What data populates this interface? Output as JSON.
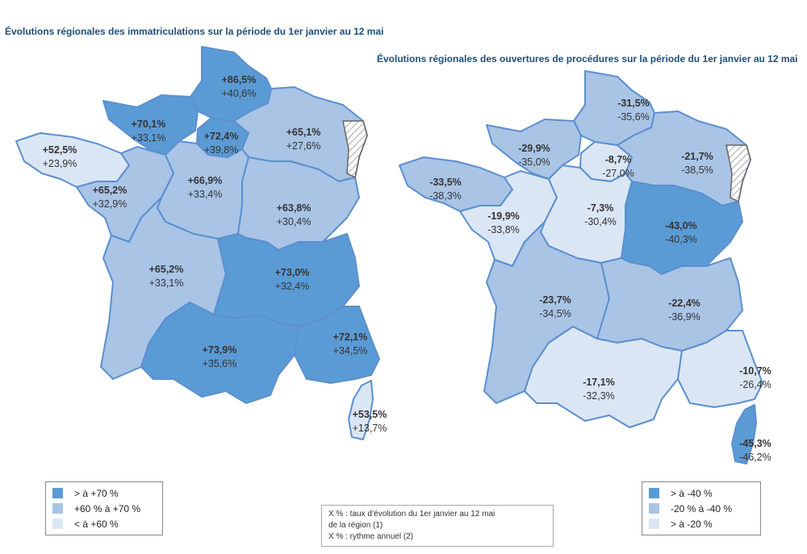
{
  "titles": {
    "left": "Évolutions régionales des immatriculations sur la période du 1er janvier au 12 mai",
    "right": "Évolutions régionales des ouvertures de procédures sur la période du 1er janvier au 12 mai"
  },
  "colors": {
    "dark": "#5b9bd5",
    "medium": "#a9c4e5",
    "light": "#dbe6f4",
    "border": "#5b8fd0",
    "coast": "#666666"
  },
  "left_map": {
    "regions": [
      {
        "name": "Hauts-de-France",
        "rate": "+86,5%",
        "annual": "+40,6%",
        "level": "dark"
      },
      {
        "name": "Normandie",
        "rate": "+70,1%",
        "annual": "+33,1%",
        "level": "dark"
      },
      {
        "name": "Île-de-France",
        "rate": "+72,4%",
        "annual": "+39,8%",
        "level": "dark"
      },
      {
        "name": "Grand Est",
        "rate": "+65,1%",
        "annual": "+27,6%",
        "level": "medium"
      },
      {
        "name": "Bretagne",
        "rate": "+52,5%",
        "annual": "+23,9%",
        "level": "light"
      },
      {
        "name": "Pays de la Loire",
        "rate": "+65,2%",
        "annual": "+32,9%",
        "level": "medium"
      },
      {
        "name": "Centre-Val de Loire",
        "rate": "+66,9%",
        "annual": "+33,4%",
        "level": "medium"
      },
      {
        "name": "Bourgogne-Franche-Comté",
        "rate": "+63,8%",
        "annual": "+30,4%",
        "level": "medium"
      },
      {
        "name": "Nouvelle-Aquitaine",
        "rate": "+65,2%",
        "annual": "+33,1%",
        "level": "medium"
      },
      {
        "name": "Auvergne-Rhône-Alpes",
        "rate": "+73,0%",
        "annual": "+32,4%",
        "level": "dark"
      },
      {
        "name": "Occitanie",
        "rate": "+73,9%",
        "annual": "+35,6%",
        "level": "dark"
      },
      {
        "name": "Provence-Alpes-Côte d'Azur",
        "rate": "+72,1%",
        "annual": "+34,5%",
        "level": "dark"
      },
      {
        "name": "Corse",
        "rate": "+53,5%",
        "annual": "+13,7%",
        "level": "light"
      }
    ],
    "legend": [
      {
        "label": "> à +70 %",
        "level": "dark"
      },
      {
        "label": "+60 % à +70 %",
        "level": "medium"
      },
      {
        "label": "< à +60 %",
        "level": "light"
      }
    ]
  },
  "right_map": {
    "regions": [
      {
        "name": "Hauts-de-France",
        "rate": "-31,5%",
        "annual": "-35,6%",
        "level": "medium"
      },
      {
        "name": "Normandie",
        "rate": "-29,9%",
        "annual": "-35,0%",
        "level": "medium"
      },
      {
        "name": "Île-de-France",
        "rate": "-8,7%",
        "annual": "-27,0%",
        "level": "light"
      },
      {
        "name": "Grand Est",
        "rate": "-21,7%",
        "annual": "-38,5%",
        "level": "medium"
      },
      {
        "name": "Bretagne",
        "rate": "-33,5%",
        "annual": "-38,3%",
        "level": "medium"
      },
      {
        "name": "Pays de la Loire",
        "rate": "-19,9%",
        "annual": "-33,8%",
        "level": "light"
      },
      {
        "name": "Centre-Val de Loire",
        "rate": "-7,3%",
        "annual": "-30,4%",
        "level": "light"
      },
      {
        "name": "Bourgogne-Franche-Comté",
        "rate": "-43,0%",
        "annual": "-40,3%",
        "level": "dark"
      },
      {
        "name": "Nouvelle-Aquitaine",
        "rate": "-23,7%",
        "annual": "-34,5%",
        "level": "medium"
      },
      {
        "name": "Auvergne-Rhône-Alpes",
        "rate": "-22,4%",
        "annual": "-36,9%",
        "level": "medium"
      },
      {
        "name": "Occitanie",
        "rate": "-17,1%",
        "annual": "-32,3%",
        "level": "light"
      },
      {
        "name": "Provence-Alpes-Côte d'Azur",
        "rate": "-10,7%",
        "annual": "-26,4%",
        "level": "light"
      },
      {
        "name": "Corse",
        "rate": "-45,3%",
        "annual": "-46,2%",
        "level": "dark"
      }
    ],
    "legend": [
      {
        "label": "> à -40 %",
        "level": "dark"
      },
      {
        "label": "-20 % à -40 %",
        "level": "medium"
      },
      {
        "label": "> à -20 %",
        "level": "light"
      }
    ]
  },
  "note": {
    "line1": "X % : taux d’évolution du 1er janvier au 12 mai",
    "line2": "de la région (1)",
    "line3": "X % : rythme annuel (2)"
  }
}
